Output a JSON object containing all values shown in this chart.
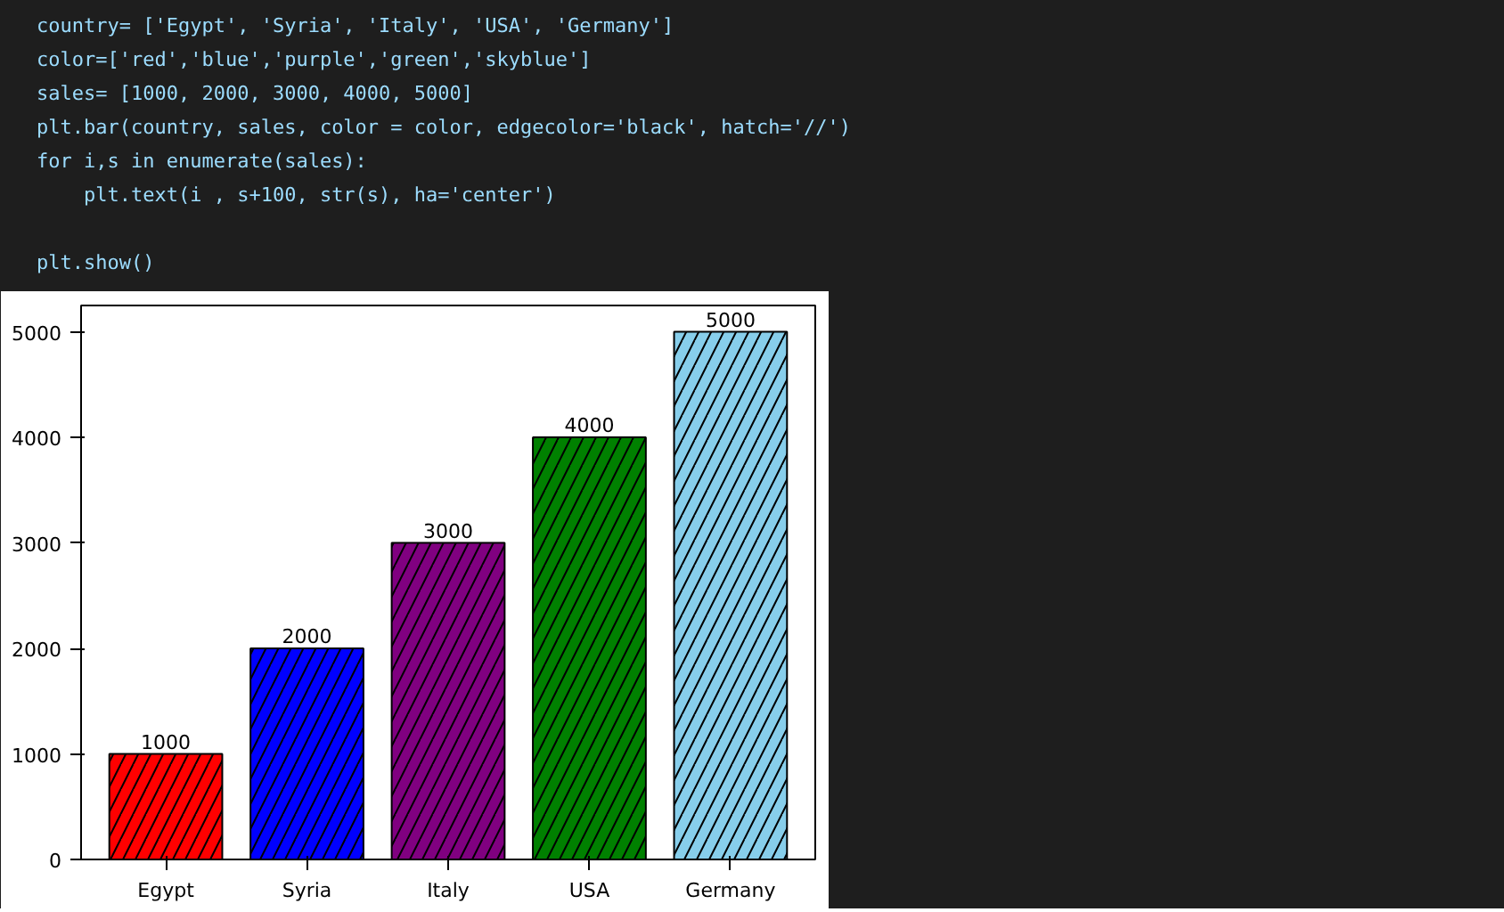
{
  "chart_data": {
    "type": "bar",
    "categories": [
      "Egypt",
      "Syria",
      "Italy",
      "USA",
      "Germany"
    ],
    "values": [
      1000,
      2000,
      3000,
      4000,
      5000
    ],
    "colors": [
      "#ff0000",
      "#0000ff",
      "#800080",
      "#008000",
      "#87ceeb"
    ],
    "ylim": [
      0,
      5250
    ],
    "yticks": [
      0,
      1000,
      2000,
      3000,
      4000,
      5000
    ],
    "data_labels": true,
    "grid": false,
    "annotations": [
      "country= ['Egypt', 'Syria', 'Italy', 'USA', 'Germany']",
      "color=['red','blue','purple','green','skyblue']",
      "sales= [1000, 2000, 3000, 4000, 5000]",
      "plt.bar(country, sales, color = color, edgecolor='black', hatch='//')",
      "for i,s in enumerate(sales):",
      "    plt.text(i , s+100, str(s), ha='center')",
      "plt.show()"
    ]
  }
}
